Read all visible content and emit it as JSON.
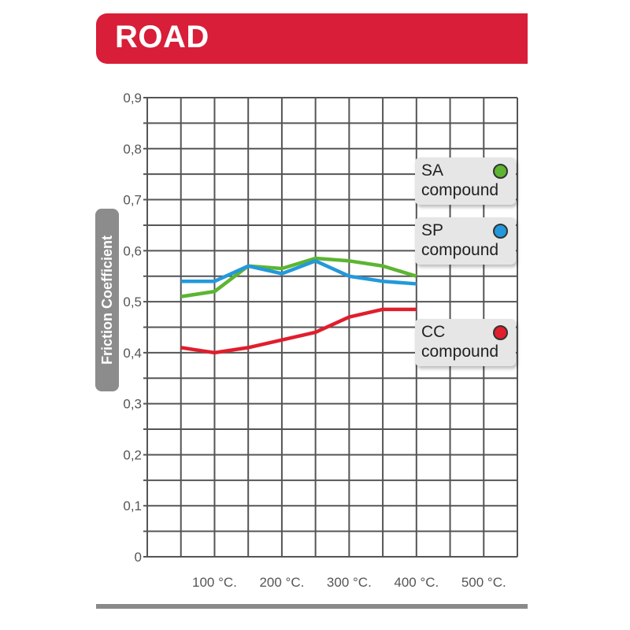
{
  "header": {
    "title": "ROAD"
  },
  "chart_data": {
    "type": "line",
    "ylabel": "Friction Coefficient",
    "xlabel": "",
    "ylim": [
      0,
      0.9
    ],
    "y_ticks": [
      "0",
      "0,1",
      "0,2",
      "0,3",
      "0,4",
      "0,5",
      "0,6",
      "0,7",
      "0,8",
      "0,9"
    ],
    "x_ticks": [
      "100 °C.",
      "200 °C.",
      "300 °C.",
      "400 °C.",
      "500 °C."
    ],
    "x_tick_values": [
      100,
      200,
      300,
      400,
      500
    ],
    "xlim": [
      0,
      550
    ],
    "x": [
      50,
      100,
      150,
      200,
      250,
      300,
      350,
      400
    ],
    "series": [
      {
        "name": "SA compound",
        "color": "#5cb531",
        "values": [
          0.51,
          0.52,
          0.57,
          0.565,
          0.585,
          0.58,
          0.57,
          0.55
        ]
      },
      {
        "name": "SP compound",
        "color": "#2399db",
        "values": [
          0.54,
          0.54,
          0.57,
          0.555,
          0.58,
          0.55,
          0.54,
          0.535
        ]
      },
      {
        "name": "CC compound",
        "color": "#e01e2c",
        "values": [
          0.41,
          0.4,
          0.41,
          0.425,
          0.44,
          0.47,
          0.485,
          0.485
        ]
      }
    ],
    "legend": [
      {
        "name": "SA",
        "label": "compound",
        "color": "#5cb531"
      },
      {
        "name": "SP",
        "label": "compound",
        "color": "#2399db"
      },
      {
        "name": "CC",
        "label": "compound",
        "color": "#e01e2c"
      }
    ],
    "grid": true,
    "legend_position": "right"
  }
}
